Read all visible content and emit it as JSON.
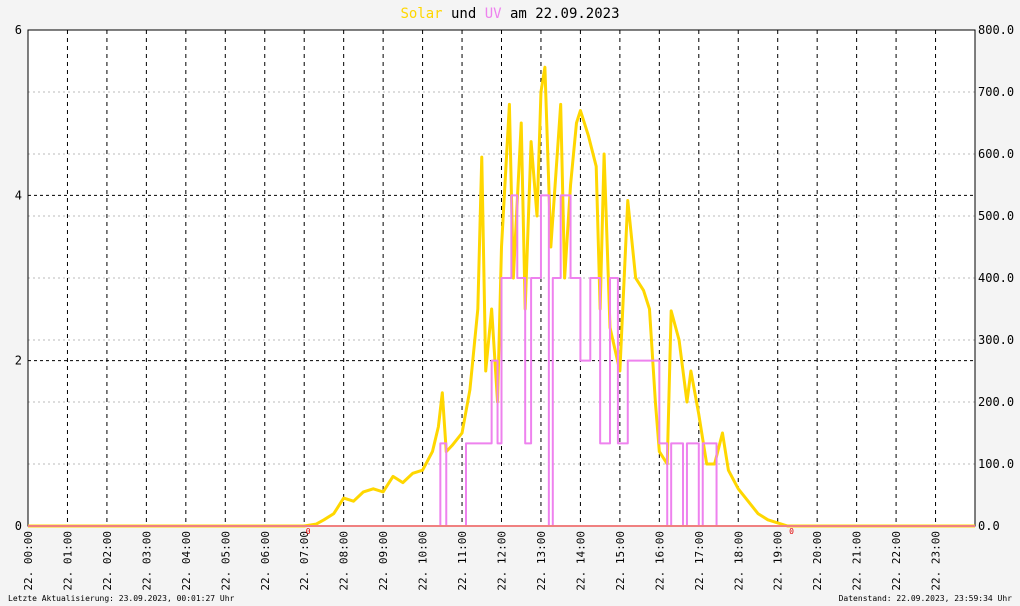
{
  "chart_data": {
    "type": "line",
    "title_parts": [
      "Solar",
      "und",
      "UV",
      "am 22.09.2023"
    ],
    "xlim": [
      0,
      24
    ],
    "xticks": [
      {
        "value": 0,
        "label": "22. 00:00"
      },
      {
        "value": 1,
        "label": "22. 01:00"
      },
      {
        "value": 2,
        "label": "22. 02:00"
      },
      {
        "value": 3,
        "label": "22. 03:00"
      },
      {
        "value": 4,
        "label": "22. 04:00"
      },
      {
        "value": 5,
        "label": "22. 05:00"
      },
      {
        "value": 6,
        "label": "22. 06:00"
      },
      {
        "value": 7,
        "label": "22. 07:00"
      },
      {
        "value": 8,
        "label": "22. 08:00"
      },
      {
        "value": 9,
        "label": "22. 09:00"
      },
      {
        "value": 10,
        "label": "22. 10:00"
      },
      {
        "value": 11,
        "label": "22. 11:00"
      },
      {
        "value": 12,
        "label": "22. 12:00"
      },
      {
        "value": 13,
        "label": "22. 13:00"
      },
      {
        "value": 14,
        "label": "22. 14:00"
      },
      {
        "value": 15,
        "label": "22. 15:00"
      },
      {
        "value": 16,
        "label": "22. 16:00"
      },
      {
        "value": 17,
        "label": "22. 17:00"
      },
      {
        "value": 18,
        "label": "22. 18:00"
      },
      {
        "value": 19,
        "label": "22. 19:00"
      },
      {
        "value": 20,
        "label": "22. 20:00"
      },
      {
        "value": 21,
        "label": "22. 21:00"
      },
      {
        "value": 22,
        "label": "22. 22:00"
      },
      {
        "value": 23,
        "label": "22. 23:00"
      }
    ],
    "ylim": [
      0,
      6
    ],
    "yticks": [
      0,
      2,
      4,
      6
    ],
    "y2lim": [
      0,
      800
    ],
    "y2ticks": [
      {
        "value": 0,
        "label": "0.0"
      },
      {
        "value": 100,
        "label": "100.0"
      },
      {
        "value": 200,
        "label": "200.0"
      },
      {
        "value": 300,
        "label": "300.0"
      },
      {
        "value": 400,
        "label": "400.0"
      },
      {
        "value": 500,
        "label": "500.0"
      },
      {
        "value": 600,
        "label": "600.0"
      },
      {
        "value": 700,
        "label": "700.0"
      },
      {
        "value": 800,
        "label": "800.0"
      }
    ],
    "grid": true,
    "series": [
      {
        "name": "Solar",
        "color": "#ffd700",
        "axis": "y2",
        "x": [
          0,
          7.0,
          7.3,
          7.5,
          7.75,
          8.0,
          8.25,
          8.5,
          8.75,
          9.0,
          9.25,
          9.5,
          9.75,
          10.0,
          10.25,
          10.4,
          10.5,
          10.6,
          10.75,
          11.0,
          11.2,
          11.4,
          11.5,
          11.6,
          11.75,
          11.9,
          12.0,
          12.2,
          12.3,
          12.5,
          12.6,
          12.75,
          12.9,
          13.0,
          13.1,
          13.25,
          13.5,
          13.6,
          13.75,
          13.9,
          14.0,
          14.2,
          14.4,
          14.5,
          14.6,
          14.75,
          15.0,
          15.2,
          15.4,
          15.6,
          15.75,
          15.9,
          16.0,
          16.2,
          16.3,
          16.5,
          16.7,
          16.8,
          17.0,
          17.2,
          17.4,
          17.6,
          17.75,
          18.0,
          18.25,
          18.5,
          18.75,
          19.0,
          19.25,
          24
        ],
        "values": [
          0,
          0,
          3,
          10,
          20,
          45,
          40,
          55,
          60,
          55,
          80,
          70,
          85,
          90,
          120,
          160,
          215,
          120,
          130,
          150,
          220,
          350,
          595,
          250,
          350,
          200,
          450,
          680,
          400,
          650,
          350,
          620,
          500,
          700,
          740,
          450,
          680,
          400,
          550,
          650,
          670,
          630,
          580,
          350,
          600,
          320,
          250,
          525,
          400,
          380,
          350,
          200,
          120,
          100,
          347,
          300,
          200,
          250,
          180,
          100,
          100,
          150,
          90,
          60,
          40,
          20,
          10,
          5,
          0,
          0
        ]
      },
      {
        "name": "UV",
        "color": "#ee82ee",
        "axis": "y",
        "x": [
          0,
          10.45,
          10.45,
          10.6,
          10.6,
          11.1,
          11.1,
          11.75,
          11.75,
          11.9,
          11.9,
          12.0,
          12.0,
          12.25,
          12.25,
          12.4,
          12.4,
          12.6,
          12.6,
          12.75,
          12.75,
          13.0,
          13.0,
          13.2,
          13.2,
          13.3,
          13.3,
          13.5,
          13.5,
          13.75,
          13.75,
          14.0,
          14.0,
          14.25,
          14.25,
          14.5,
          14.5,
          14.75,
          14.75,
          14.95,
          14.95,
          15.2,
          15.2,
          16.0,
          16.0,
          16.2,
          16.2,
          16.3,
          16.3,
          16.6,
          16.6,
          16.7,
          16.7,
          17.0,
          17.0,
          17.1,
          17.1,
          17.45,
          17.45,
          24
        ],
        "values": [
          0,
          0,
          1,
          1,
          0,
          0,
          1,
          1,
          2,
          2,
          1,
          1,
          3,
          3,
          4,
          4,
          3,
          3,
          1,
          1,
          3,
          3,
          4,
          4,
          0,
          0,
          3,
          3,
          4,
          4,
          3,
          3,
          2,
          2,
          3,
          3,
          1,
          1,
          3,
          3,
          1,
          1,
          2,
          2,
          1,
          1,
          0,
          0,
          1,
          1,
          0,
          0,
          1,
          1,
          0,
          0,
          1,
          1,
          0,
          0
        ]
      }
    ],
    "annotations": [
      {
        "x": 7.1,
        "label": "0"
      },
      {
        "x": 19.35,
        "label": "0"
      }
    ],
    "footer_left": "Letzte Aktualisierung: 23.09.2023, 00:01:27 Uhr",
    "footer_right": "Datenstand: 22.09.2023, 23:59:34 Uhr"
  }
}
